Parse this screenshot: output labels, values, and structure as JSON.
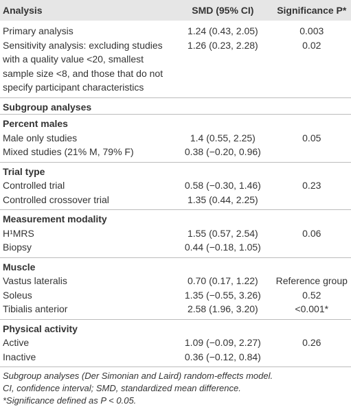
{
  "table": {
    "header": [
      "Analysis",
      "SMD (95% CI)",
      "Significance P*"
    ],
    "rows": [
      {
        "cells": [
          "Primary analysis",
          "1.24 (0.43, 2.05)",
          "0.003"
        ]
      },
      {
        "cells": [
          "Sensitivity analysis: excluding studies with a quality value <20, smallest sample size <8, and those that do not specify participant characteristics",
          "1.26 (0.23, 2.28)",
          "0.02"
        ]
      },
      {
        "section": "Subgroup analyses"
      },
      {
        "section": "Percent males"
      },
      {
        "cells": [
          "Male only studies",
          "1.4 (0.55, 2.25)",
          "0.05"
        ]
      },
      {
        "cells": [
          "Mixed studies (21% M, 79% F)",
          "0.38 (−0.20, 0.96)",
          ""
        ]
      },
      {
        "section": "Trial type"
      },
      {
        "cells": [
          "Controlled trial",
          "0.58 (−0.30, 1.46)",
          "0.23"
        ]
      },
      {
        "cells": [
          "Controlled crossover trial",
          "1.35 (0.44, 2.25)",
          ""
        ]
      },
      {
        "section": "Measurement modality"
      },
      {
        "cells": [
          "H¹MRS",
          "1.55 (0.57, 2.54)",
          "0.06"
        ]
      },
      {
        "cells": [
          "Biopsy",
          "0.44 (−0.18, 1.05)",
          ""
        ]
      },
      {
        "section": "Muscle"
      },
      {
        "cells": [
          "Vastus lateralis",
          "0.70 (0.17, 1.22)",
          "Reference group"
        ]
      },
      {
        "cells": [
          "Soleus",
          "1.35 (−0.55, 3.26)",
          "0.52"
        ]
      },
      {
        "cells": [
          "Tibialis anterior",
          "2.58 (1.96, 3.20)",
          "<0.001*"
        ]
      },
      {
        "section": "Physical activity"
      },
      {
        "cells": [
          "Active",
          "1.09 (−0.09, 2.27)",
          "0.26"
        ]
      },
      {
        "cells": [
          "Inactive",
          "0.36 (−0.12, 0.84)",
          ""
        ]
      }
    ],
    "notes": [
      "Subgroup analyses (Der Simonian and Laird) random-effects model.",
      "CI, confidence interval; SMD, standardized mean difference.",
      "*Significance defined as P < 0.05."
    ]
  }
}
